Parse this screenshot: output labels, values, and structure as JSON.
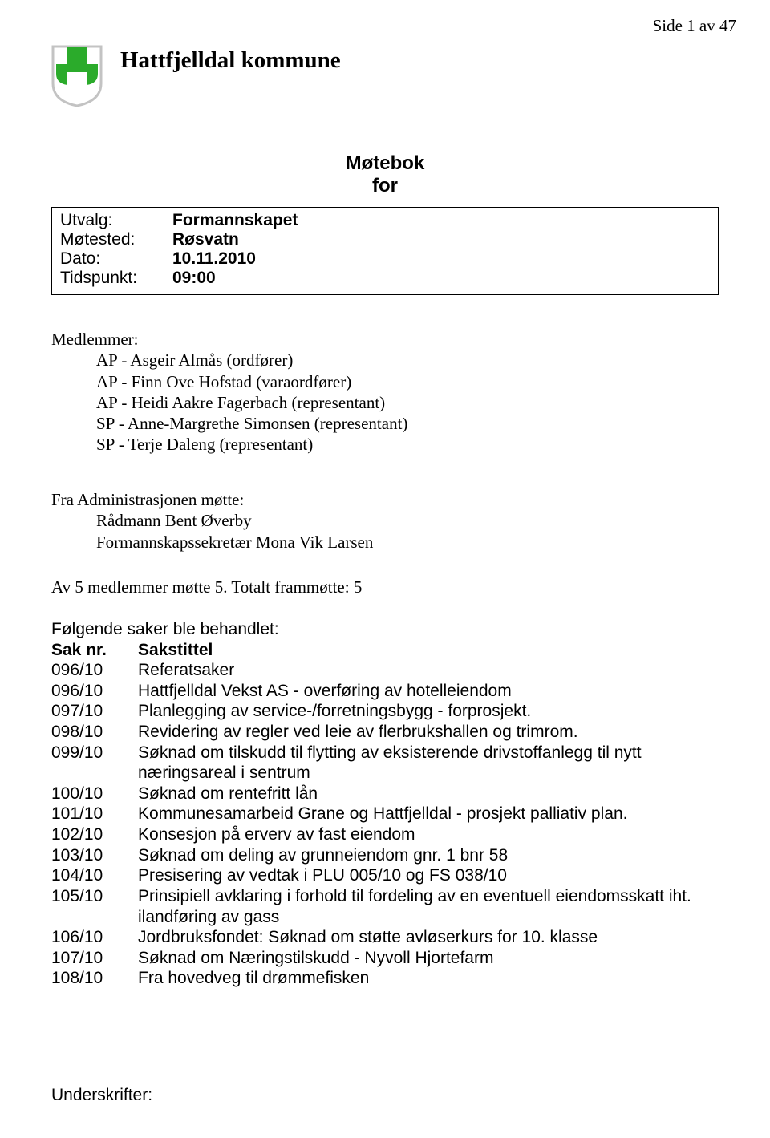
{
  "page_indicator": "Side 1 av 47",
  "header": {
    "title": "Hattfjelldal kommune",
    "shield": {
      "outer_color": "#c3c3c3",
      "inner_color": "#2bab2b",
      "bg_color": "#ffffff"
    }
  },
  "motebok": {
    "line1": "Møtebok",
    "line2": "for"
  },
  "meeting": {
    "rows": [
      {
        "label": "Utvalg:",
        "value": "Formannskapet"
      },
      {
        "label": "Møtested:",
        "value": "Røsvatn"
      },
      {
        "label": "Dato:",
        "value": "10.11.2010"
      },
      {
        "label": "Tidspunkt:",
        "value": "09:00"
      }
    ]
  },
  "members": {
    "heading": "Medlemmer:",
    "items": [
      "AP - Asgeir Almås (ordfører)",
      "AP - Finn Ove Hofstad (varaordfører)",
      "AP - Heidi Aakre Fagerbach (representant)",
      "SP - Anne-Margrethe Simonsen (representant)",
      "SP - Terje Daleng (representant)"
    ]
  },
  "admin": {
    "heading": "Fra Administrasjonen møtte:",
    "items": [
      "Rådmann Bent Øverby",
      "Formannskapssekretær Mona Vik Larsen"
    ]
  },
  "attendance": "Av 5 medlemmer møtte 5. Totalt frammøtte: 5",
  "cases": {
    "intro": "Følgende saker ble behandlet:",
    "col1": "Sak nr.",
    "col2": "Sakstittel",
    "rows": [
      {
        "num": "096/10",
        "title": "Referatsaker"
      },
      {
        "num": "096/10",
        "title": "Hattfjelldal Vekst AS - overføring av hotelleiendom"
      },
      {
        "num": "097/10",
        "title": "Planlegging av service-/forretningsbygg - forprosjekt."
      },
      {
        "num": "098/10",
        "title": "Revidering av regler ved leie av flerbrukshallen og trimrom."
      },
      {
        "num": "099/10",
        "title": "Søknad om tilskudd til flytting av eksisterende drivstoffanlegg til nytt næringsareal i sentrum"
      },
      {
        "num": "100/10",
        "title": "Søknad om rentefritt lån"
      },
      {
        "num": "101/10",
        "title": "Kommunesamarbeid Grane og Hattfjelldal - prosjekt palliativ plan."
      },
      {
        "num": "102/10",
        "title": "Konsesjon på erverv av fast eiendom"
      },
      {
        "num": "103/10",
        "title": "Søknad om deling av grunneiendom gnr. 1 bnr 58"
      },
      {
        "num": "104/10",
        "title": "Presisering av vedtak i PLU 005/10 og FS 038/10"
      },
      {
        "num": "105/10",
        "title": "Prinsipiell avklaring i forhold til fordeling av en eventuell eiendomsskatt iht. ilandføring av gass"
      },
      {
        "num": "106/10",
        "title": "Jordbruksfondet: Søknad om støtte avløserkurs for 10. klasse"
      },
      {
        "num": "107/10",
        "title": "Søknad om Næringstilskudd - Nyvoll Hjortefarm"
      },
      {
        "num": "108/10",
        "title": "Fra hovedveg til drømmefisken"
      }
    ]
  },
  "signatures": "Underskrifter:"
}
